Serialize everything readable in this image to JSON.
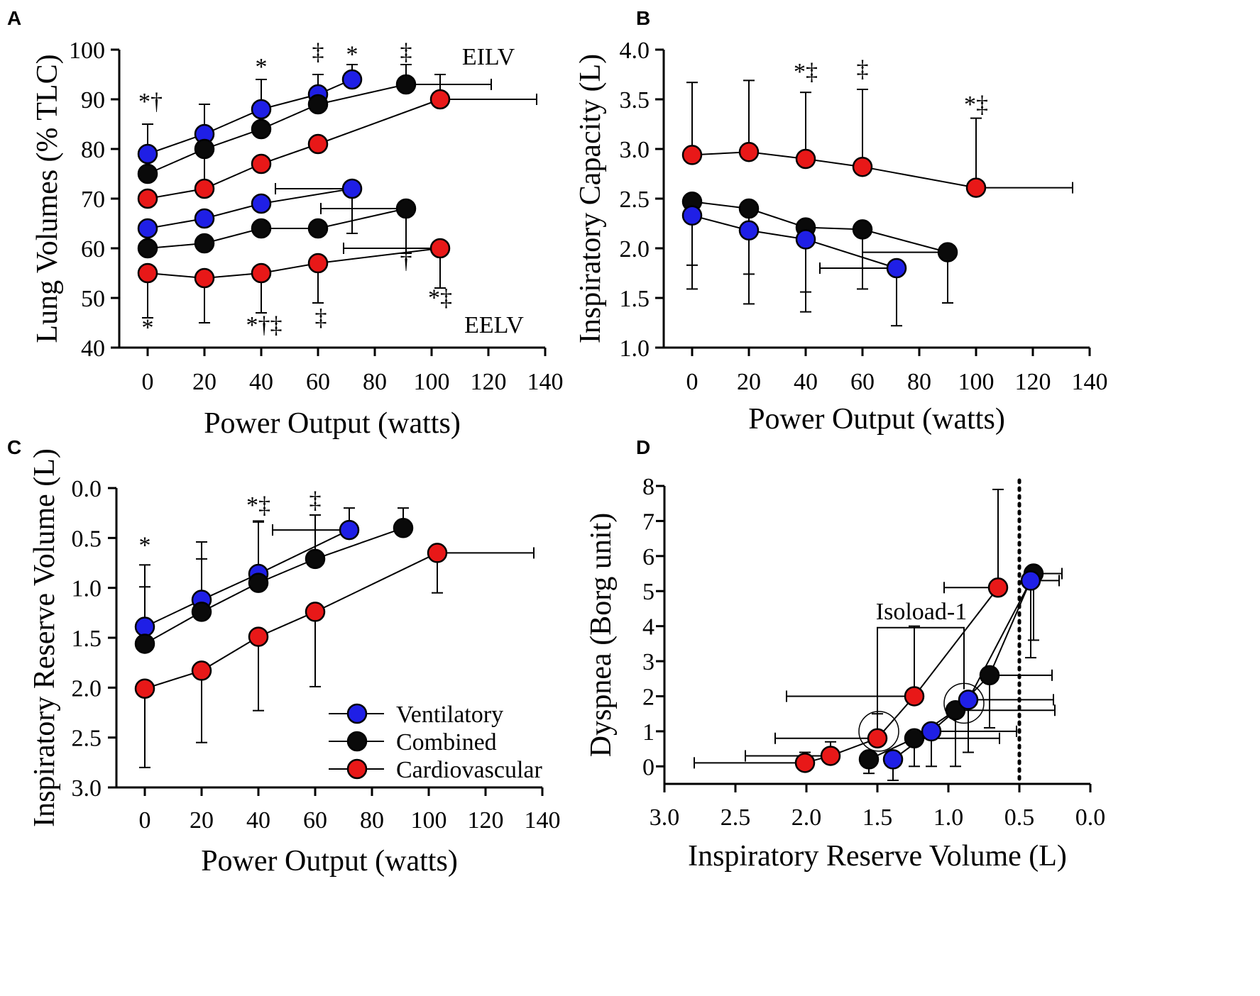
{
  "colors": {
    "ventilatory": "#1f1fe6",
    "combined": "#0a0a0a",
    "cardiovascular": "#e81818"
  },
  "legend": [
    "Ventilatory",
    "Combined",
    "Cardiovascular"
  ],
  "chart_data": [
    {
      "panel": "A",
      "type": "line",
      "title": "",
      "xlabel": "Power Output (watts)",
      "ylabel": "Lung Volumes (% TLC)",
      "xlim": [
        -10,
        140
      ],
      "ylim": [
        40,
        100
      ],
      "xticks": [
        0,
        20,
        40,
        60,
        80,
        100,
        120,
        140
      ],
      "yticks": [
        40,
        50,
        60,
        70,
        80,
        90,
        100
      ],
      "series": [
        {
          "name": "Ventilatory",
          "group": "ventilatory",
          "label": "EILV",
          "x": [
            0,
            20,
            40,
            60,
            72
          ],
          "y": [
            79,
            83,
            88,
            91,
            94
          ],
          "errors": [
            {
              "i": 0,
              "dy": 6
            },
            {
              "i": 1,
              "dy": 6
            },
            {
              "i": 2,
              "dy": 6
            },
            {
              "i": 3,
              "dy": 4
            },
            {
              "i": 4,
              "dy": 3
            }
          ]
        },
        {
          "name": "Combined",
          "group": "combined",
          "label": "EILV",
          "x": [
            0,
            20,
            40,
            60,
            91
          ],
          "y": [
            75,
            80,
            84,
            89,
            93
          ],
          "errors": [
            {
              "i": 1,
              "dy": -7
            },
            {
              "i": 3,
              "dy": 6
            },
            {
              "i": 4,
              "dy": 4,
              "dx": 30
            }
          ]
        },
        {
          "name": "Cardiovascular",
          "group": "cardiovascular",
          "label": "EILV",
          "x": [
            0,
            20,
            40,
            60,
            103
          ],
          "y": [
            70,
            72,
            77,
            81,
            90
          ],
          "errors": [
            {
              "i": 4,
              "dy": 5,
              "dx": 34
            }
          ]
        },
        {
          "name": "Ventilatory",
          "group": "ventilatory",
          "label": "EELV",
          "x": [
            0,
            20,
            40,
            72
          ],
          "y": [
            64,
            66,
            69,
            72
          ],
          "errors": [
            {
              "i": 3,
              "dy": -9,
              "dx": -27
            }
          ]
        },
        {
          "name": "Combined",
          "group": "combined",
          "label": "EELV",
          "x": [
            0,
            20,
            40,
            60,
            91
          ],
          "y": [
            60,
            61,
            64,
            64,
            68
          ],
          "errors": [
            {
              "i": 4,
              "dy": -9,
              "dx": -30
            }
          ]
        },
        {
          "name": "Cardiovascular",
          "group": "cardiovascular",
          "label": "EELV",
          "x": [
            0,
            20,
            40,
            60,
            103
          ],
          "y": [
            55,
            54,
            55,
            57,
            60
          ],
          "errors": [
            {
              "i": 0,
              "dy": -9
            },
            {
              "i": 1,
              "dy": -9
            },
            {
              "i": 2,
              "dy": -8
            },
            {
              "i": 3,
              "dy": -8
            },
            {
              "i": 4,
              "dy": -8,
              "dx": -34
            }
          ]
        }
      ],
      "annotations": [
        {
          "text": "EILV",
          "x": 120,
          "y": 97
        },
        {
          "text": "EELV",
          "x": 122,
          "y": 43
        },
        {
          "text": "*†",
          "x": 1,
          "y": 88
        },
        {
          "text": "*",
          "x": 40,
          "y": 95
        },
        {
          "text": "‡",
          "x": 60,
          "y": 98
        },
        {
          "text": "*",
          "x": 72,
          "y": 97.5
        },
        {
          "text": "‡",
          "x": 91,
          "y": 98
        },
        {
          "text": "*",
          "x": 0,
          "y": 42.5
        },
        {
          "text": "*†‡",
          "x": 41,
          "y": 43
        },
        {
          "text": "‡",
          "x": 61,
          "y": 44.5
        },
        {
          "text": "†",
          "x": 91,
          "y": 56
        },
        {
          "text": "*‡",
          "x": 103,
          "y": 48.5
        }
      ]
    },
    {
      "panel": "B",
      "type": "line",
      "title": "",
      "xlabel": "Power Output (watts)",
      "ylabel": "Inspiratory Capacity (L)",
      "xlim": [
        -10,
        140
      ],
      "ylim": [
        1.0,
        4.0
      ],
      "xticks": [
        0,
        20,
        40,
        60,
        80,
        100,
        120,
        140
      ],
      "yticks": [
        1.0,
        1.5,
        2.0,
        2.5,
        3.0,
        3.5,
        4.0
      ],
      "series": [
        {
          "name": "Cardiovascular",
          "group": "cardiovascular",
          "x": [
            0,
            20,
            40,
            60,
            100
          ],
          "y": [
            2.94,
            2.97,
            2.9,
            2.82,
            2.61
          ],
          "errors": [
            {
              "i": 0,
              "dy": 0.73
            },
            {
              "i": 1,
              "dy": 0.72
            },
            {
              "i": 2,
              "dy": 0.67
            },
            {
              "i": 3,
              "dy": 0.78
            },
            {
              "i": 4,
              "dy": 0.7,
              "dx": 34
            }
          ]
        },
        {
          "name": "Combined",
          "group": "combined",
          "x": [
            0,
            20,
            40,
            60,
            90
          ],
          "y": [
            2.47,
            2.4,
            2.21,
            2.19,
            1.96
          ],
          "errors": [
            {
              "i": 0,
              "dy": -0.88
            },
            {
              "i": 1,
              "dy": -0.96
            },
            {
              "i": 2,
              "dy": -0.85
            },
            {
              "i": 3,
              "dy": -0.6
            },
            {
              "i": 4,
              "dy": -0.51,
              "dx": -30
            }
          ]
        },
        {
          "name": "Ventilatory",
          "group": "ventilatory",
          "x": [
            0,
            20,
            40,
            72
          ],
          "y": [
            2.33,
            2.18,
            2.09,
            1.8
          ],
          "errors": [
            {
              "i": 0,
              "dy": -0.5
            },
            {
              "i": 1,
              "dy": -0.44
            },
            {
              "i": 2,
              "dy": -0.53
            },
            {
              "i": 3,
              "dy": -0.58,
              "dx": -27
            }
          ]
        }
      ],
      "annotations": [
        {
          "text": "*‡",
          "x": 40,
          "y": 3.7
        },
        {
          "text": "‡",
          "x": 60,
          "y": 3.73
        },
        {
          "text": "*‡",
          "x": 100,
          "y": 3.37
        }
      ]
    },
    {
      "panel": "C",
      "type": "line",
      "title": "",
      "xlabel": "Power Output (watts)",
      "ylabel": "Inspiratory Reserve Volume (L)",
      "xlim": [
        -10,
        140
      ],
      "ylim": [
        3.0,
        0.0
      ],
      "xticks": [
        0,
        20,
        40,
        60,
        80,
        100,
        120,
        140
      ],
      "yticks": [
        0.0,
        0.5,
        1.0,
        1.5,
        2.0,
        2.5,
        3.0
      ],
      "series": [
        {
          "name": "Ventilatory",
          "group": "ventilatory",
          "x": [
            0,
            20,
            40,
            72
          ],
          "y": [
            1.39,
            1.12,
            0.86,
            0.42
          ],
          "errors": [
            {
              "i": 0,
              "dy": -0.62
            },
            {
              "i": 1,
              "dy": -0.58
            },
            {
              "i": 2,
              "dy": -0.52
            },
            {
              "i": 3,
              "dy": -0.22,
              "dx": -27
            }
          ]
        },
        {
          "name": "Combined",
          "group": "combined",
          "x": [
            0,
            20,
            40,
            60,
            91
          ],
          "y": [
            1.56,
            1.24,
            0.95,
            0.71,
            0.4
          ],
          "errors": [
            {
              "i": 0,
              "dy": -0.57
            },
            {
              "i": 1,
              "dy": -0.53
            },
            {
              "i": 2,
              "dy": -0.62
            },
            {
              "i": 3,
              "dy": -0.44
            },
            {
              "i": 4,
              "dy": -0.2
            }
          ]
        },
        {
          "name": "Cardiovascular",
          "group": "cardiovascular",
          "x": [
            0,
            20,
            40,
            60,
            103
          ],
          "y": [
            2.01,
            1.83,
            1.49,
            1.24,
            0.65
          ],
          "errors": [
            {
              "i": 0,
              "dy": 0.79
            },
            {
              "i": 1,
              "dy": 0.72
            },
            {
              "i": 2,
              "dy": 0.74
            },
            {
              "i": 3,
              "dy": 0.75
            },
            {
              "i": 4,
              "dy": 0.4,
              "dx": 34
            }
          ]
        }
      ],
      "annotations": [
        {
          "text": "*",
          "x": 0,
          "y": 0.65
        },
        {
          "text": "*‡",
          "x": 40,
          "y": 0.25
        },
        {
          "text": "‡",
          "x": 60,
          "y": 0.2
        }
      ],
      "legend_position": "bottom-right"
    },
    {
      "panel": "D",
      "type": "scatter",
      "title": "",
      "xlabel": "Inspiratory Reserve Volume (L)",
      "ylabel": "Dyspnea (Borg unit)",
      "xlim": [
        3.0,
        0.0
      ],
      "ylim": [
        -0.5,
        8
      ],
      "xticks": [
        3.0,
        2.5,
        2.0,
        1.5,
        1.0,
        0.5,
        0.0
      ],
      "yticks": [
        0,
        1,
        2,
        3,
        4,
        5,
        6,
        7,
        8
      ],
      "vline": {
        "x": 0.5,
        "style": "dotted"
      },
      "series": [
        {
          "name": "Cardiovascular",
          "group": "cardiovascular",
          "x": [
            2.01,
            1.83,
            1.5,
            1.24,
            0.65
          ],
          "y": [
            0.1,
            0.3,
            0.8,
            2.0,
            5.1
          ],
          "errors": [
            {
              "i": 0,
              "dy": 0.3,
              "dx": 0.78
            },
            {
              "i": 1,
              "dy": 0.4,
              "dx": 0.6
            },
            {
              "i": 2,
              "dy": 0.7,
              "dx": 0.72
            },
            {
              "i": 3,
              "dy": 2.0,
              "dx": 0.9
            },
            {
              "i": 4,
              "dy": 2.8,
              "dx": 0.38
            }
          ]
        },
        {
          "name": "Combined",
          "group": "combined",
          "x": [
            1.56,
            1.24,
            0.95,
            0.71,
            0.4
          ],
          "y": [
            0.2,
            0.8,
            1.6,
            2.6,
            5.5
          ],
          "errors": [
            {
              "i": 0,
              "dy": -0.4
            },
            {
              "i": 1,
              "dy": -0.8,
              "dx": -0.6
            },
            {
              "i": 2,
              "dy": -1.6,
              "dx": -0.7
            },
            {
              "i": 3,
              "dy": -1.5,
              "dx": -0.44
            },
            {
              "i": 4,
              "dy": -1.9,
              "dx": -0.2
            }
          ]
        },
        {
          "name": "Ventilatory",
          "group": "ventilatory",
          "x": [
            1.39,
            1.12,
            0.86,
            0.42
          ],
          "y": [
            0.2,
            1.0,
            1.9,
            5.3
          ],
          "errors": [
            {
              "i": 0,
              "dy": -0.6
            },
            {
              "i": 1,
              "dy": -1.0,
              "dx": -0.6
            },
            {
              "i": 2,
              "dy": -1.5,
              "dx": -0.6
            },
            {
              "i": 3,
              "dy": -2.2,
              "dx": -0.2
            }
          ]
        }
      ],
      "annotations": [
        {
          "text": "Isoload-1",
          "x": 1.19,
          "y": 4.2
        }
      ],
      "bracket": {
        "x1": 1.5,
        "x2": 0.89,
        "y": 4.2,
        "y_end1": 1.4,
        "y_end2": 2.2
      },
      "circles": [
        {
          "x": 1.49,
          "y": 1.0
        },
        {
          "x": 0.89,
          "y": 1.8
        }
      ]
    }
  ]
}
